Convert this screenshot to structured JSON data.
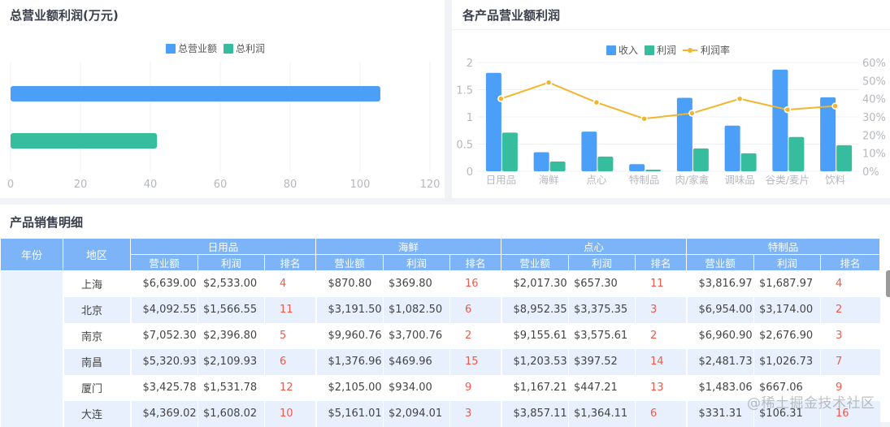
{
  "panels": {
    "total": {
      "title": "总营业额利润(万元)"
    },
    "products": {
      "title": "各产品营业额利润"
    },
    "detail": {
      "title": "产品销售明细"
    }
  },
  "chart_data": [
    {
      "type": "bar",
      "orientation": "horizontal",
      "title": "总营业额利润(万元)",
      "legend": [
        "总营业额",
        "总利润"
      ],
      "legend_position": "top",
      "series": [
        {
          "name": "总营业额",
          "value": 105.8,
          "color": "#4c9ff8"
        },
        {
          "name": "总利润",
          "value": 41.9,
          "color": "#36bd9e"
        }
      ],
      "xlim": [
        0,
        120
      ],
      "xticks": [
        "0",
        "20",
        "40",
        "60",
        "80",
        "100",
        "120"
      ],
      "grid": true
    },
    {
      "type": "bar",
      "title": "各产品营业额利润",
      "categories": [
        "日用品",
        "海鲜",
        "点心",
        "特制品",
        "肉/家禽",
        "调味品",
        "谷类/麦片",
        "饮料"
      ],
      "legend": [
        "收入",
        "利润",
        "利润率"
      ],
      "legend_position": "top",
      "series": [
        {
          "name": "收入",
          "type": "bar",
          "axis": "left",
          "color": "#4c9ff8",
          "values": [
            1.81,
            0.35,
            0.73,
            0.13,
            1.35,
            0.84,
            1.87,
            1.36
          ]
        },
        {
          "name": "利润",
          "type": "bar",
          "axis": "left",
          "color": "#36bd9e",
          "values": [
            0.71,
            0.18,
            0.27,
            0.03,
            0.42,
            0.33,
            0.63,
            0.48
          ]
        },
        {
          "name": "利润率",
          "type": "line",
          "axis": "right",
          "color": "#f3b52e",
          "values": [
            40,
            49,
            38,
            29,
            32,
            40,
            34,
            36
          ]
        }
      ],
      "ylim_left": [
        0,
        2
      ],
      "yticks_left": [
        "0",
        "0.5",
        "1",
        "1.5",
        "2"
      ],
      "ylim_right": [
        0,
        60
      ],
      "yticks_right": [
        "0%",
        "10%",
        "20%",
        "30%",
        "40%",
        "50%",
        "60%"
      ],
      "grid": true
    },
    {
      "type": "table",
      "title": "产品销售明细"
    }
  ],
  "table": {
    "fixed_headers": [
      "年份",
      "地区"
    ],
    "groups": [
      "日用品",
      "海鲜",
      "点心",
      "特制品"
    ],
    "sub_headers": [
      "营业额",
      "利润",
      "排名"
    ],
    "rows": [
      {
        "region": "上海",
        "cells": [
          [
            "$6,639.00",
            "$2,533.00",
            "4"
          ],
          [
            "$870.80",
            "$369.80",
            "16"
          ],
          [
            "$2,017.30",
            "$657.30",
            "11"
          ],
          [
            "$3,816.97",
            "$1,687.97",
            "4"
          ]
        ]
      },
      {
        "region": "北京",
        "cells": [
          [
            "$4,092.55",
            "$1,566.55",
            "11"
          ],
          [
            "$3,191.50",
            "$1,082.50",
            "6"
          ],
          [
            "$8,952.35",
            "$3,375.35",
            "3"
          ],
          [
            "$6,954.00",
            "$3,174.00",
            "2"
          ]
        ]
      },
      {
        "region": "南京",
        "cells": [
          [
            "$7,052.30",
            "$2,396.80",
            "5"
          ],
          [
            "$9,960.76",
            "$3,700.76",
            "2"
          ],
          [
            "$9,155.61",
            "$3,575.61",
            "2"
          ],
          [
            "$6,960.90",
            "$2,676.90",
            "3"
          ]
        ]
      },
      {
        "region": "南昌",
        "cells": [
          [
            "$5,320.93",
            "$2,109.93",
            "6"
          ],
          [
            "$1,376.96",
            "$469.96",
            "15"
          ],
          [
            "$1,203.53",
            "$397.52",
            "14"
          ],
          [
            "$2,481.73",
            "$1,026.73",
            "7"
          ]
        ]
      },
      {
        "region": "厦门",
        "cells": [
          [
            "$3,425.78",
            "$1,531.78",
            "12"
          ],
          [
            "$2,105.00",
            "$934.00",
            "9"
          ],
          [
            "$1,167.21",
            "$447.21",
            "13"
          ],
          [
            "$1,483.06",
            "$667.06",
            "9"
          ]
        ]
      },
      {
        "region": "大连",
        "cells": [
          [
            "$4,369.02",
            "$1,608.02",
            "10"
          ],
          [
            "$5,161.01",
            "$2,094.01",
            "3"
          ],
          [
            "$3,857.11",
            "$1,364.11",
            "6"
          ],
          [
            "$331.31",
            "$106.31",
            "16"
          ]
        ]
      }
    ]
  },
  "watermark": "@稀土掘金技术社区"
}
